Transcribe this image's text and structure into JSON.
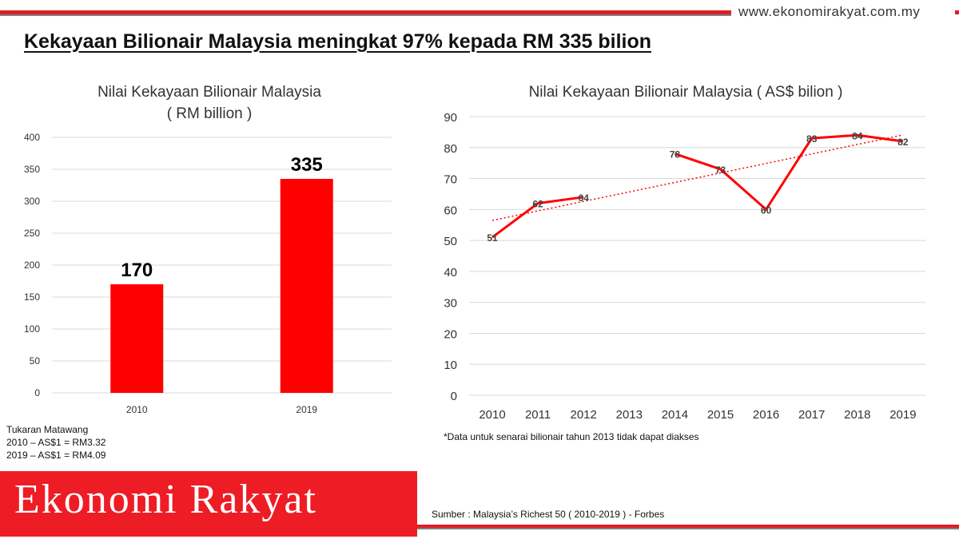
{
  "header": {
    "site_url": "www.ekonomirakyat.com.my",
    "title": "Kekayaan Bilionair Malaysia meningkat 97% kepada RM 335 bilion"
  },
  "chart_data": [
    {
      "type": "bar",
      "title": "Nilai Kekayaan Bilionair Malaysia",
      "subtitle": "( RM billion )",
      "categories": [
        "2010",
        "2019"
      ],
      "values": [
        170,
        335
      ],
      "ylim": [
        0,
        400
      ],
      "yticks": [
        0,
        50,
        100,
        150,
        200,
        250,
        300,
        350,
        400
      ],
      "grid": true,
      "color": "#ff0000"
    },
    {
      "type": "line",
      "title": "Nilai Kekayaan Bilionair Malaysia ( AS$ bilion )",
      "x": [
        "2010",
        "2011",
        "2012",
        "2013",
        "2014",
        "2015",
        "2016",
        "2017",
        "2018",
        "2019"
      ],
      "series": [
        {
          "values": [
            51,
            62,
            64,
            null,
            78,
            73,
            60,
            83,
            84,
            82
          ],
          "color": "#ff0000"
        }
      ],
      "trendline": {
        "type": "linear",
        "style": "dotted",
        "color": "#ff0000"
      },
      "ylim": [
        0,
        90
      ],
      "yticks": [
        0,
        10,
        20,
        30,
        40,
        50,
        60,
        70,
        80,
        90
      ],
      "grid": true
    }
  ],
  "notes": {
    "missing_2013": "*Data untuk senarai bilionair tahun 2013 tidak dapat diakses",
    "fx_title": "Tukaran Matawang",
    "fx_2010": "2010 – AS$1 = RM3.32",
    "fx_2019": "2019 – AS$1 = RM4.09"
  },
  "footer": {
    "brand": "Ekonomi Rakyat",
    "source": "Sumber  : Malaysia’s Richest 50 ( 2010-2019 ) - Forbes"
  }
}
